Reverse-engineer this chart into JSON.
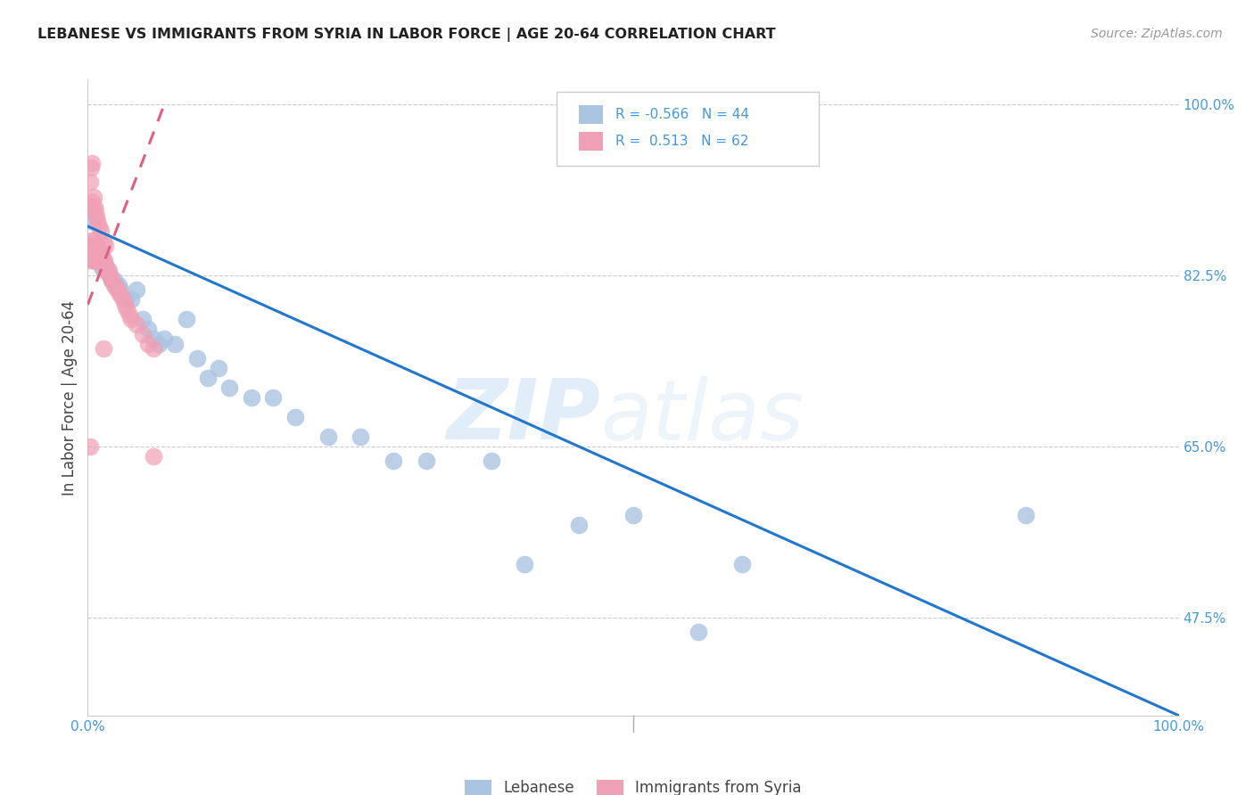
{
  "title": "LEBANESE VS IMMIGRANTS FROM SYRIA IN LABOR FORCE | AGE 20-64 CORRELATION CHART",
  "source": "Source: ZipAtlas.com",
  "ylabel": "In Labor Force | Age 20-64",
  "legend_label1": "Lebanese",
  "legend_label2": "Immigrants from Syria",
  "R1": -0.566,
  "N1": 44,
  "R2": 0.513,
  "N2": 62,
  "color_blue": "#aac4e2",
  "color_pink": "#f0a0b5",
  "line_blue": "#2277cc",
  "line_pink": "#e06080",
  "watermark_zip": "ZIP",
  "watermark_atlas": "atlas",
  "xlim": [
    0.0,
    1.0
  ],
  "ylim": [
    0.375,
    1.025
  ],
  "ytick_vals": [
    0.475,
    0.65,
    0.825,
    1.0
  ],
  "ytick_labels": [
    "47.5%",
    "65.0%",
    "82.5%",
    "100.0%"
  ],
  "blue_line_x": [
    0.0,
    1.0
  ],
  "blue_line_y": [
    0.875,
    0.375
  ],
  "pink_line_x": [
    0.0,
    0.072
  ],
  "pink_line_y": [
    0.795,
    1.005
  ],
  "blue_x": [
    0.002,
    0.004,
    0.006,
    0.008,
    0.01,
    0.012,
    0.014,
    0.016,
    0.018,
    0.02,
    0.022,
    0.024,
    0.026,
    0.028,
    0.03,
    0.035,
    0.04,
    0.045,
    0.05,
    0.055,
    0.06,
    0.065,
    0.07,
    0.08,
    0.09,
    0.1,
    0.11,
    0.12,
    0.13,
    0.15,
    0.17,
    0.19,
    0.22,
    0.25,
    0.28,
    0.31,
    0.37,
    0.4,
    0.45,
    0.5,
    0.56,
    0.6,
    0.86,
    0.003
  ],
  "blue_y": [
    0.855,
    0.85,
    0.845,
    0.84,
    0.84,
    0.835,
    0.83,
    0.835,
    0.83,
    0.825,
    0.82,
    0.82,
    0.815,
    0.815,
    0.81,
    0.8,
    0.8,
    0.81,
    0.78,
    0.77,
    0.76,
    0.755,
    0.76,
    0.755,
    0.78,
    0.74,
    0.72,
    0.73,
    0.71,
    0.7,
    0.7,
    0.68,
    0.66,
    0.66,
    0.635,
    0.635,
    0.635,
    0.53,
    0.57,
    0.58,
    0.46,
    0.53,
    0.58,
    0.88
  ],
  "pink_x": [
    0.001,
    0.002,
    0.002,
    0.003,
    0.003,
    0.004,
    0.004,
    0.005,
    0.005,
    0.006,
    0.006,
    0.007,
    0.007,
    0.008,
    0.008,
    0.009,
    0.009,
    0.01,
    0.01,
    0.011,
    0.011,
    0.012,
    0.012,
    0.013,
    0.014,
    0.015,
    0.016,
    0.017,
    0.018,
    0.019,
    0.02,
    0.022,
    0.024,
    0.026,
    0.028,
    0.03,
    0.032,
    0.034,
    0.036,
    0.038,
    0.04,
    0.045,
    0.05,
    0.055,
    0.06,
    0.003,
    0.004,
    0.005,
    0.006,
    0.007,
    0.008,
    0.009,
    0.01,
    0.012,
    0.014,
    0.016,
    0.002,
    0.003,
    0.004,
    0.014,
    0.002,
    0.06
  ],
  "pink_y": [
    0.845,
    0.85,
    0.84,
    0.86,
    0.845,
    0.855,
    0.84,
    0.86,
    0.845,
    0.855,
    0.84,
    0.855,
    0.84,
    0.855,
    0.84,
    0.85,
    0.84,
    0.85,
    0.84,
    0.848,
    0.84,
    0.848,
    0.838,
    0.845,
    0.84,
    0.84,
    0.835,
    0.83,
    0.83,
    0.83,
    0.825,
    0.82,
    0.815,
    0.812,
    0.808,
    0.805,
    0.8,
    0.795,
    0.79,
    0.785,
    0.78,
    0.775,
    0.765,
    0.755,
    0.75,
    0.895,
    0.9,
    0.905,
    0.895,
    0.89,
    0.885,
    0.88,
    0.875,
    0.87,
    0.86,
    0.855,
    0.92,
    0.935,
    0.94,
    0.75,
    0.65,
    0.64
  ]
}
